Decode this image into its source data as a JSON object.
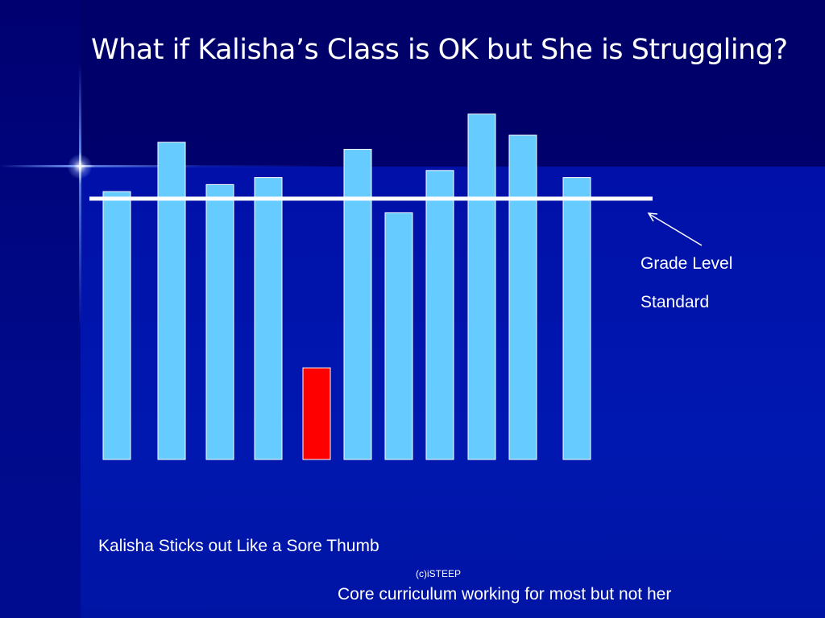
{
  "title": "What if Kalisha’s Class is OK but She is Struggling?",
  "annotation": {
    "line1": "Grade Level",
    "line2": "Standard"
  },
  "caption": "Kalisha Sticks out Like a Sore Thumb",
  "copyright": "(c)iSTEEP",
  "subcaption": "Core curriculum working for most but not her",
  "colors": {
    "background": "#000066",
    "bar": "#66CCFF",
    "highlight_bar": "#FF0000",
    "standard_line": "#FFFFFF"
  },
  "chart_data": {
    "type": "bar",
    "values": [
      76,
      90,
      78,
      80,
      26,
      88,
      70,
      82,
      98,
      92,
      80
    ],
    "highlight_index": 4,
    "reference_line": 74,
    "ylim": [
      0,
      100
    ],
    "grid": false
  }
}
